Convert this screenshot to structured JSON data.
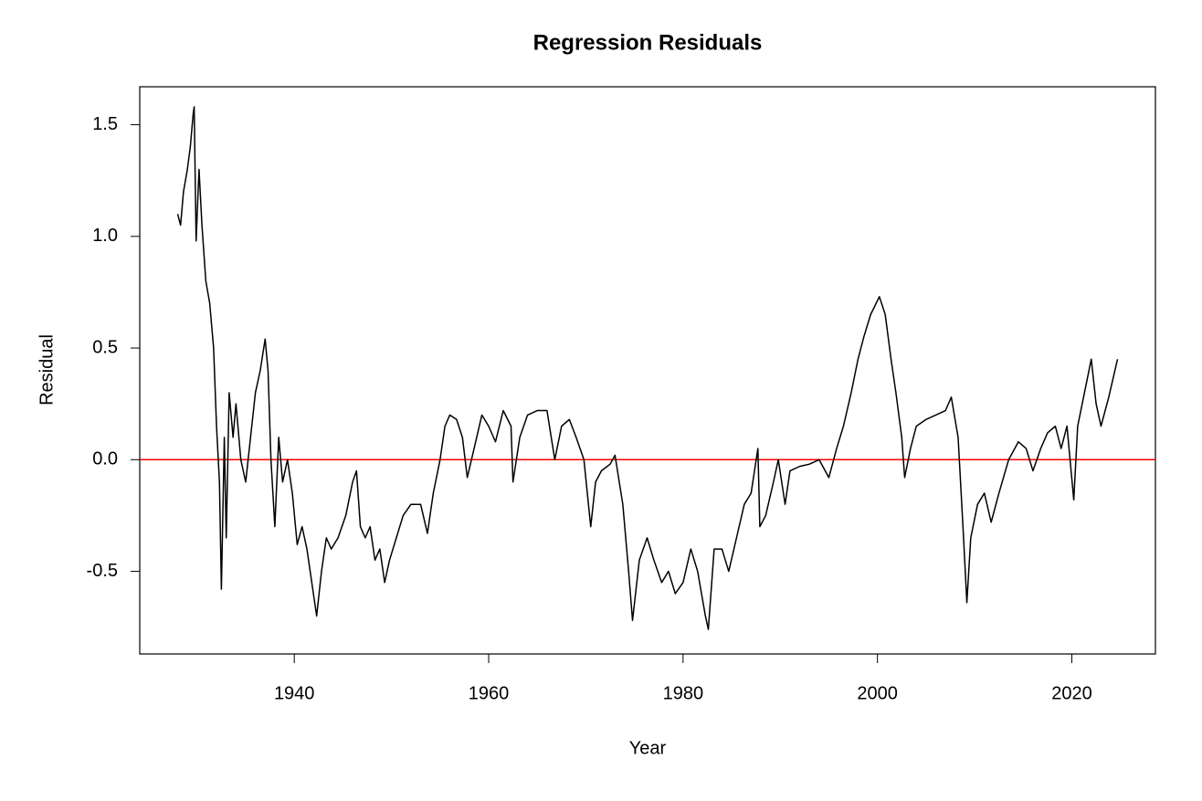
{
  "chart_data": {
    "type": "line",
    "title": "Regression Residuals",
    "x_label": "Year",
    "y_label": "Residual",
    "xlim": [
      1924.1,
      2028.6
    ],
    "xticks": [
      1940,
      1960,
      1980,
      2000,
      2020
    ],
    "ylim": [
      -0.87,
      1.67
    ],
    "yticks": [
      {
        "value": -0.5,
        "label": "-0.5"
      },
      {
        "value": 0,
        "label": "0.0"
      },
      0.5,
      {
        "value": 1,
        "label": "1.0"
      },
      1.5
    ],
    "hline": {
      "value": 0,
      "color": "#ff0000"
    },
    "series": [
      {
        "name": "Residual",
        "color": "#000000",
        "x": [
          1928.0,
          1928.3,
          1928.6,
          1929.0,
          1929.3,
          1929.6,
          1929.7,
          1929.9,
          1930.2,
          1930.5,
          1930.9,
          1931.3,
          1931.7,
          1932.0,
          1932.3,
          1932.5,
          1932.8,
          1933.0,
          1933.3,
          1933.7,
          1934.0,
          1934.5,
          1935.0,
          1935.5,
          1936.0,
          1936.5,
          1937.0,
          1937.3,
          1937.6,
          1938.0,
          1938.4,
          1938.8,
          1939.3,
          1939.8,
          1940.3,
          1940.8,
          1941.3,
          1941.8,
          1942.3,
          1942.8,
          1943.3,
          1943.8,
          1944.5,
          1945.3,
          1946.0,
          1946.4,
          1946.8,
          1947.3,
          1947.8,
          1948.3,
          1948.8,
          1949.3,
          1949.8,
          1950.5,
          1951.2,
          1952.0,
          1953.0,
          1953.7,
          1954.3,
          1955.0,
          1955.5,
          1956.0,
          1956.7,
          1957.3,
          1957.8,
          1958.5,
          1959.3,
          1960.0,
          1960.7,
          1961.5,
          1962.3,
          1962.5,
          1963.2,
          1964.0,
          1965.0,
          1966.0,
          1966.8,
          1967.5,
          1968.3,
          1969.0,
          1969.8,
          1970.5,
          1971.0,
          1971.6,
          1972.5,
          1973.0,
          1973.8,
          1974.4,
          1974.8,
          1975.5,
          1976.3,
          1977.0,
          1977.8,
          1978.5,
          1979.2,
          1980.0,
          1980.8,
          1981.5,
          1982.3,
          1982.6,
          1983.2,
          1984.0,
          1984.7,
          1985.5,
          1986.3,
          1987.0,
          1987.7,
          1987.9,
          1988.5,
          1989.3,
          1989.8,
          1990.5,
          1991.0,
          1992.0,
          1993.0,
          1994.0,
          1995.0,
          1995.8,
          1996.5,
          1997.3,
          1998.0,
          1998.6,
          1999.3,
          2000.2,
          2000.8,
          2001.4,
          2001.9,
          2002.5,
          2002.8,
          2003.4,
          2004.0,
          2005.0,
          2006.0,
          2007.0,
          2007.6,
          2008.3,
          2008.8,
          2009.2,
          2009.6,
          2010.3,
          2011.0,
          2011.7,
          2012.5,
          2013.5,
          2014.5,
          2015.3,
          2016.0,
          2016.8,
          2017.5,
          2018.3,
          2018.9,
          2019.5,
          2020.2,
          2020.6,
          2021.3,
          2022.0,
          2022.5,
          2023.0,
          2023.8,
          2024.7
        ],
        "values": [
          1.1,
          1.05,
          1.2,
          1.3,
          1.4,
          1.55,
          1.58,
          0.98,
          1.3,
          1.05,
          0.8,
          0.7,
          0.5,
          0.15,
          -0.1,
          -0.58,
          0.1,
          -0.35,
          0.3,
          0.1,
          0.25,
          0.0,
          -0.1,
          0.1,
          0.3,
          0.4,
          0.54,
          0.4,
          0.0,
          -0.3,
          0.1,
          -0.1,
          0.0,
          -0.15,
          -0.38,
          -0.3,
          -0.4,
          -0.55,
          -0.7,
          -0.5,
          -0.35,
          -0.4,
          -0.35,
          -0.25,
          -0.1,
          -0.05,
          -0.3,
          -0.35,
          -0.3,
          -0.45,
          -0.4,
          -0.55,
          -0.45,
          -0.35,
          -0.25,
          -0.2,
          -0.2,
          -0.33,
          -0.15,
          0.0,
          0.15,
          0.2,
          0.18,
          0.1,
          -0.08,
          0.05,
          0.2,
          0.15,
          0.08,
          0.22,
          0.15,
          -0.1,
          0.1,
          0.2,
          0.22,
          0.22,
          0.0,
          0.15,
          0.18,
          0.1,
          0.0,
          -0.3,
          -0.1,
          -0.05,
          -0.02,
          0.02,
          -0.2,
          -0.5,
          -0.72,
          -0.45,
          -0.35,
          -0.45,
          -0.55,
          -0.5,
          -0.6,
          -0.55,
          -0.4,
          -0.5,
          -0.7,
          -0.76,
          -0.4,
          -0.4,
          -0.5,
          -0.35,
          -0.2,
          -0.15,
          0.05,
          -0.3,
          -0.25,
          -0.1,
          0.0,
          -0.2,
          -0.05,
          -0.03,
          -0.02,
          0.0,
          -0.08,
          0.05,
          0.15,
          0.3,
          0.45,
          0.55,
          0.65,
          0.73,
          0.65,
          0.45,
          0.3,
          0.1,
          -0.08,
          0.05,
          0.15,
          0.18,
          0.2,
          0.22,
          0.28,
          0.1,
          -0.3,
          -0.64,
          -0.35,
          -0.2,
          -0.15,
          -0.28,
          -0.15,
          0.0,
          0.08,
          0.05,
          -0.05,
          0.05,
          0.12,
          0.15,
          0.05,
          0.15,
          -0.18,
          0.15,
          0.3,
          0.45,
          0.25,
          0.15,
          0.28,
          0.45
        ]
      }
    ]
  }
}
